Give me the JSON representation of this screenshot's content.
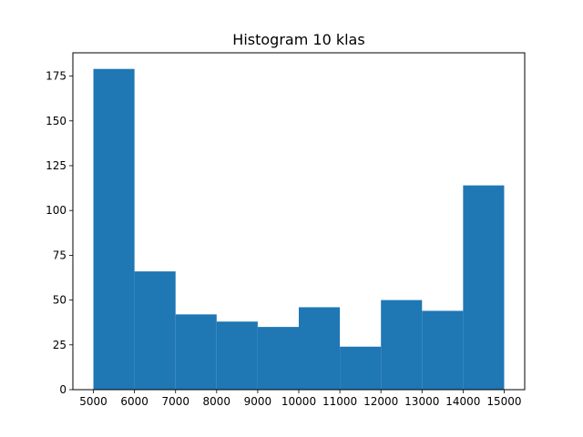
{
  "chart_data": {
    "type": "bar",
    "title": "Histogram 10 klas",
    "xlabel": "",
    "ylabel": "",
    "bin_edges": [
      5000,
      6000,
      7000,
      8000,
      9000,
      10000,
      11000,
      12000,
      13000,
      14000,
      15000
    ],
    "values": [
      179,
      66,
      42,
      38,
      35,
      46,
      24,
      50,
      44,
      114
    ],
    "xlim": [
      4500,
      15500
    ],
    "ylim": [
      0,
      188
    ],
    "xticks": [
      5000,
      6000,
      7000,
      8000,
      9000,
      10000,
      11000,
      12000,
      13000,
      14000,
      15000
    ],
    "yticks": [
      0,
      25,
      50,
      75,
      100,
      125,
      150,
      175
    ],
    "bar_color": "#1f77b4",
    "grid": false,
    "legend": "none"
  }
}
